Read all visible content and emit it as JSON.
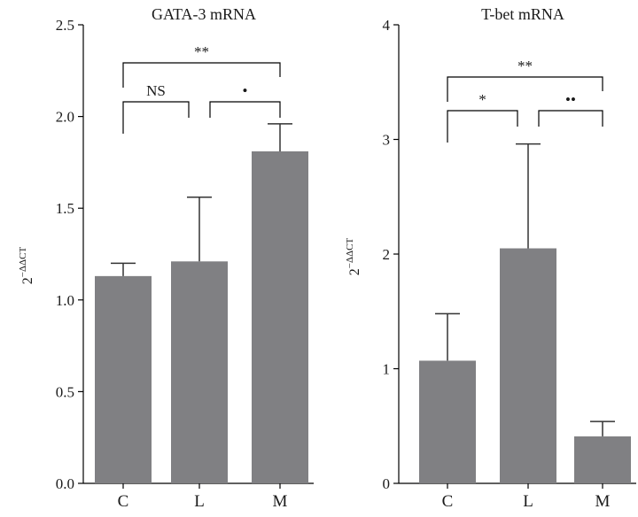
{
  "chart_data": [
    {
      "type": "bar",
      "title": "GATA-3 mRNA",
      "ylabel_base": "2",
      "ylabel_exp": "−ΔΔCT",
      "categories": [
        "C",
        "L",
        "M"
      ],
      "values": [
        1.13,
        1.21,
        1.81
      ],
      "errors": [
        0.07,
        0.35,
        0.15
      ],
      "ylim": [
        0,
        2.5
      ],
      "yticks": [
        0.0,
        0.5,
        1.0,
        1.5,
        2.0,
        2.5
      ],
      "ytick_labels": [
        "0.0",
        "0.5",
        "1.0",
        "1.5",
        "2.0",
        "2.5"
      ],
      "bar_color": "#808083",
      "comparisons": [
        {
          "from": 0,
          "to": 1,
          "label": "NS",
          "level": 1
        },
        {
          "from": 1,
          "to": 2,
          "label": "•",
          "level": 1
        },
        {
          "from": 0,
          "to": 2,
          "label": "**",
          "level": 2
        }
      ]
    },
    {
      "type": "bar",
      "title": "T-bet mRNA",
      "ylabel_base": "2",
      "ylabel_exp": "−ΔΔCT",
      "categories": [
        "C",
        "L",
        "M"
      ],
      "values": [
        1.07,
        2.05,
        0.41
      ],
      "errors": [
        0.41,
        0.91,
        0.13
      ],
      "ylim": [
        0,
        4
      ],
      "yticks": [
        0,
        1,
        2,
        3,
        4
      ],
      "ytick_labels": [
        "0",
        "1",
        "2",
        "3",
        "4"
      ],
      "bar_color": "#808083",
      "comparisons": [
        {
          "from": 0,
          "to": 1,
          "label": "*",
          "level": 1
        },
        {
          "from": 1,
          "to": 2,
          "label": "••",
          "level": 1
        },
        {
          "from": 0,
          "to": 2,
          "label": "**",
          "level": 2
        }
      ]
    }
  ]
}
